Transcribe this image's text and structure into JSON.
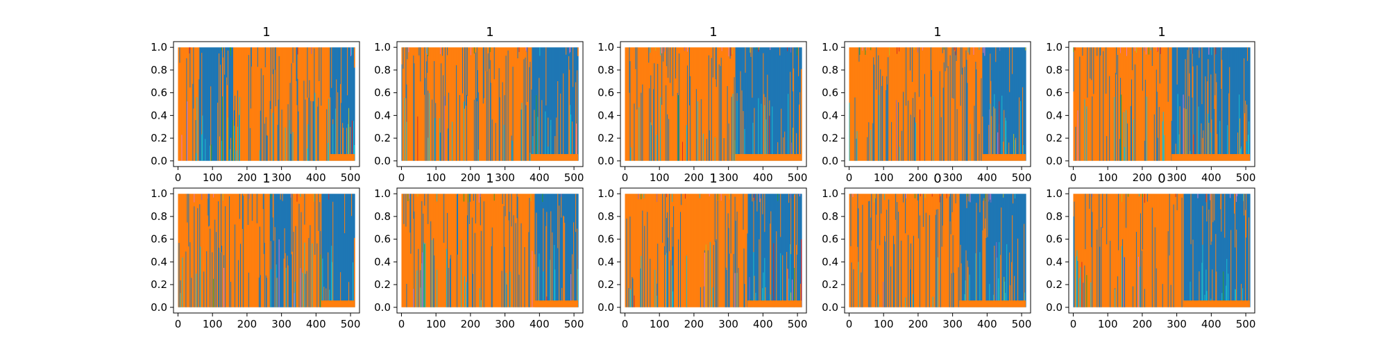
{
  "chart_data": [
    {
      "type": "area",
      "title": "1",
      "xlim": [
        -13,
        526
      ],
      "ylim": [
        -0.05,
        1.05
      ],
      "xticks": [
        0,
        100,
        200,
        300,
        400,
        500
      ],
      "yticks": [
        0.0,
        0.2,
        0.4,
        0.6,
        0.8,
        1.0
      ],
      "xlabel": "",
      "ylabel": "",
      "length": 512,
      "dominant_segments": [
        {
          "class": "orange",
          "x": [
            0,
            60
          ]
        },
        {
          "class": "blue",
          "x": [
            60,
            160
          ]
        },
        {
          "class": "orange",
          "x": [
            160,
            440
          ]
        },
        {
          "class": "blue",
          "x": [
            440,
            512
          ]
        }
      ],
      "description": "dense per-position class probability traces; orange and blue classes dominate"
    },
    {
      "type": "area",
      "title": "1",
      "xlim": [
        -13,
        526
      ],
      "ylim": [
        -0.05,
        1.05
      ],
      "xticks": [
        0,
        100,
        200,
        300,
        400,
        500
      ],
      "yticks": [
        0.0,
        0.2,
        0.4,
        0.6,
        0.8,
        1.0
      ],
      "xlabel": "",
      "ylabel": "",
      "length": 512,
      "dominant_segments": [
        {
          "class": "orange",
          "x": [
            0,
            375
          ]
        },
        {
          "class": "blue",
          "x": [
            375,
            512
          ]
        }
      ]
    },
    {
      "type": "area",
      "title": "1",
      "xlim": [
        -13,
        526
      ],
      "ylim": [
        -0.05,
        1.05
      ],
      "xticks": [
        0,
        100,
        200,
        300,
        400,
        500
      ],
      "yticks": [
        0.0,
        0.2,
        0.4,
        0.6,
        0.8,
        1.0
      ],
      "xlabel": "",
      "ylabel": "",
      "length": 512,
      "dominant_segments": [
        {
          "class": "orange",
          "x": [
            0,
            320
          ]
        },
        {
          "class": "blue",
          "x": [
            320,
            512
          ]
        }
      ]
    },
    {
      "type": "area",
      "title": "1",
      "xlim": [
        -13,
        526
      ],
      "ylim": [
        -0.05,
        1.05
      ],
      "xticks": [
        0,
        100,
        200,
        300,
        400,
        500
      ],
      "yticks": [
        0.0,
        0.2,
        0.4,
        0.6,
        0.8,
        1.0
      ],
      "xlabel": "",
      "ylabel": "",
      "length": 512,
      "dominant_segments": [
        {
          "class": "orange",
          "x": [
            0,
            385
          ]
        },
        {
          "class": "blue",
          "x": [
            385,
            512
          ]
        }
      ]
    },
    {
      "type": "area",
      "title": "1",
      "xlim": [
        -13,
        526
      ],
      "ylim": [
        -0.05,
        1.05
      ],
      "xticks": [
        0,
        100,
        200,
        300,
        400,
        500
      ],
      "yticks": [
        0.0,
        0.2,
        0.4,
        0.6,
        0.8,
        1.0
      ],
      "xlabel": "",
      "ylabel": "",
      "length": 512,
      "dominant_segments": [
        {
          "class": "orange",
          "x": [
            0,
            285
          ]
        },
        {
          "class": "blue",
          "x": [
            285,
            512
          ]
        }
      ]
    },
    {
      "type": "area",
      "title": "1",
      "xlim": [
        -13,
        526
      ],
      "ylim": [
        -0.05,
        1.05
      ],
      "xticks": [
        0,
        100,
        200,
        300,
        400,
        500
      ],
      "yticks": [
        0.0,
        0.2,
        0.4,
        0.6,
        0.8,
        1.0
      ],
      "xlabel": "",
      "ylabel": "",
      "length": 512,
      "dominant_segments": [
        {
          "class": "orange",
          "x": [
            0,
            265
          ]
        },
        {
          "class": "blue",
          "x": [
            265,
            330
          ]
        },
        {
          "class": "orange",
          "x": [
            330,
            415
          ]
        },
        {
          "class": "blue",
          "x": [
            415,
            512
          ]
        }
      ]
    },
    {
      "type": "area",
      "title": "1",
      "xlim": [
        -13,
        526
      ],
      "ylim": [
        -0.05,
        1.05
      ],
      "xticks": [
        0,
        100,
        200,
        300,
        400,
        500
      ],
      "yticks": [
        0.0,
        0.2,
        0.4,
        0.6,
        0.8,
        1.0
      ],
      "xlabel": "",
      "ylabel": "",
      "length": 512,
      "dominant_segments": [
        {
          "class": "orange",
          "x": [
            0,
            385
          ]
        },
        {
          "class": "blue",
          "x": [
            385,
            512
          ]
        }
      ]
    },
    {
      "type": "area",
      "title": "1",
      "xlim": [
        -13,
        526
      ],
      "ylim": [
        -0.05,
        1.05
      ],
      "xticks": [
        0,
        100,
        200,
        300,
        400,
        500
      ],
      "yticks": [
        0.0,
        0.2,
        0.4,
        0.6,
        0.8,
        1.0
      ],
      "xlabel": "",
      "ylabel": "",
      "length": 512,
      "dominant_segments": [
        {
          "class": "orange",
          "x": [
            0,
            355
          ]
        },
        {
          "class": "blue",
          "x": [
            355,
            512
          ]
        }
      ]
    },
    {
      "type": "area",
      "title": "0",
      "xlim": [
        -13,
        526
      ],
      "ylim": [
        -0.05,
        1.05
      ],
      "xticks": [
        0,
        100,
        200,
        300,
        400,
        500
      ],
      "yticks": [
        0.0,
        0.2,
        0.4,
        0.6,
        0.8,
        1.0
      ],
      "xlabel": "",
      "ylabel": "",
      "length": 512,
      "dominant_segments": [
        {
          "class": "orange",
          "x": [
            0,
            320
          ]
        },
        {
          "class": "blue",
          "x": [
            320,
            512
          ]
        }
      ]
    },
    {
      "type": "area",
      "title": "0",
      "xlim": [
        -13,
        526
      ],
      "ylim": [
        -0.05,
        1.05
      ],
      "xticks": [
        0,
        100,
        200,
        300,
        400,
        500
      ],
      "yticks": [
        0.0,
        0.2,
        0.4,
        0.6,
        0.8,
        1.0
      ],
      "xlabel": "",
      "ylabel": "",
      "length": 512,
      "dominant_segments": [
        {
          "class": "orange",
          "x": [
            0,
            320
          ]
        },
        {
          "class": "blue",
          "x": [
            320,
            512
          ]
        }
      ]
    }
  ],
  "colors": {
    "blue": "#1f77b4",
    "orange": "#ff7f0e",
    "cyan": "#17becf",
    "olive": "#bcbd22",
    "green": "#2ca02c",
    "red": "#d62728",
    "purple": "#9467bd",
    "pink": "#e377c2",
    "axes": "#000000",
    "background": "#ffffff"
  }
}
